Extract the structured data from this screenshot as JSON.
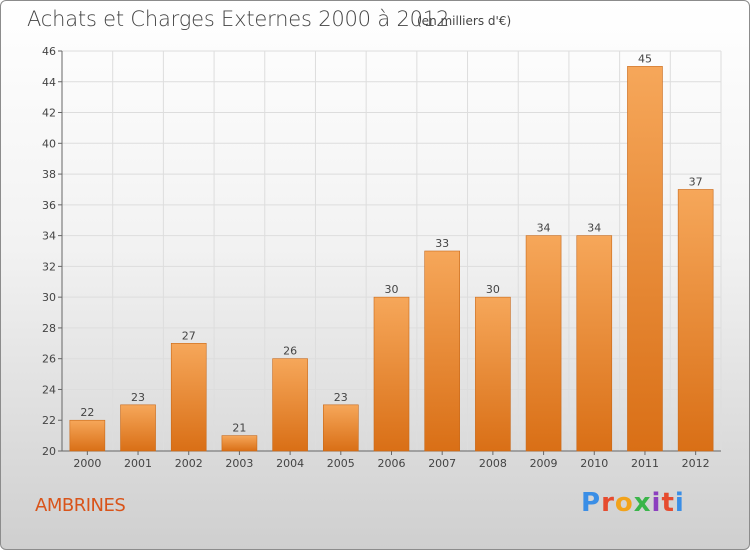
{
  "header": {
    "title": "Achats et Charges Externes 2000 à 2012",
    "subtitle": "(en milliers d'€)"
  },
  "footer": {
    "commune": "AMBRINES",
    "logo": {
      "letters": [
        "P",
        "r",
        "o",
        "x",
        "i",
        "t",
        "i"
      ],
      "colors": [
        "#3a8ee6",
        "#e64b2e",
        "#f2a31b",
        "#3ab54a",
        "#8c3fbf",
        "#e64b2e",
        "#3a8ee6"
      ]
    }
  },
  "chart_data": {
    "type": "bar",
    "title": "Achats et Charges Externes 2000 à 2012",
    "subtitle": "(en milliers d'€)",
    "categories": [
      "2000",
      "2001",
      "2002",
      "2003",
      "2004",
      "2005",
      "2006",
      "2007",
      "2008",
      "2009",
      "2010",
      "2011",
      "2012"
    ],
    "values": [
      22,
      23,
      27,
      21,
      26,
      23,
      30,
      33,
      30,
      34,
      34,
      45,
      37
    ],
    "ylim": [
      20,
      46
    ],
    "yticks": [
      20,
      22,
      24,
      26,
      28,
      30,
      32,
      34,
      36,
      38,
      40,
      42,
      44,
      46
    ],
    "grid": true,
    "bar_color_top": "#f6a75a",
    "bar_color_bottom": "#d96f16"
  }
}
